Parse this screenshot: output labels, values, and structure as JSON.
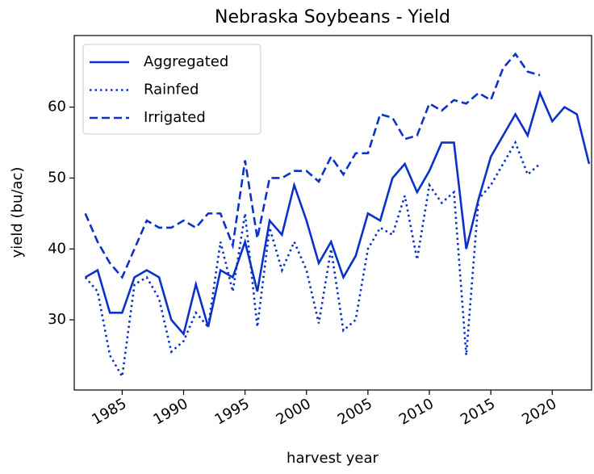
{
  "chart_data": {
    "type": "line",
    "title": "Nebraska Soybeans - Yield",
    "x_label": "harvest year",
    "y_label": "yield (bu/ac)",
    "x": [
      1982,
      1983,
      1984,
      1985,
      1986,
      1987,
      1988,
      1989,
      1990,
      1991,
      1992,
      1993,
      1994,
      1995,
      1996,
      1997,
      1998,
      1999,
      2000,
      2001,
      2002,
      2003,
      2004,
      2005,
      2006,
      2007,
      2008,
      2009,
      2010,
      2011,
      2012,
      2013,
      2014,
      2015,
      2016,
      2017,
      2018,
      2019,
      2020,
      2021,
      2022,
      2023
    ],
    "series": [
      {
        "name": "Aggregated",
        "color": "#0a32c8",
        "linestyle": "solid",
        "values": [
          36,
          37,
          31,
          31,
          36,
          37,
          36,
          30,
          28,
          35,
          29,
          37,
          36,
          41,
          34,
          44,
          42,
          49,
          44,
          38,
          41,
          36,
          39,
          45,
          44,
          50,
          52,
          48,
          51,
          55,
          55,
          40,
          47,
          53,
          56,
          59,
          56,
          62,
          58,
          60,
          59,
          52
        ]
      },
      {
        "name": "Rainfed",
        "color": "#0a32c8",
        "linestyle": "dotted",
        "values": [
          36,
          34,
          25,
          22,
          35,
          36,
          33,
          25.5,
          27,
          31,
          29,
          41,
          34,
          45,
          29,
          43,
          37,
          41,
          37,
          29.5,
          40,
          28.5,
          30,
          40,
          43,
          42,
          47.5,
          38.5,
          49,
          46.5,
          48,
          25,
          47,
          49,
          52,
          55,
          50.5,
          52,
          null,
          null,
          null,
          null
        ]
      },
      {
        "name": "Irrigated",
        "color": "#0a32c8",
        "linestyle": "dashed",
        "values": [
          45,
          41,
          38,
          36,
          40,
          44,
          43,
          43,
          44,
          43,
          45,
          45,
          40.5,
          52.5,
          41.5,
          50,
          50,
          51,
          51,
          49.5,
          53,
          50.5,
          53.5,
          53.5,
          59,
          58.5,
          55.5,
          56,
          60.5,
          59.5,
          61,
          60.5,
          62,
          61,
          65.5,
          67.5,
          65,
          64.5,
          null,
          null,
          null,
          null
        ]
      }
    ],
    "xlim": [
      1981.1,
      2023.2
    ],
    "xticks": [
      1985,
      1990,
      1995,
      2000,
      2005,
      2010,
      2015,
      2020
    ],
    "ylim": [
      20.1,
      70.1
    ],
    "yticks": [
      30,
      40,
      50,
      60
    ],
    "legend": "upper left",
    "grid": false
  }
}
